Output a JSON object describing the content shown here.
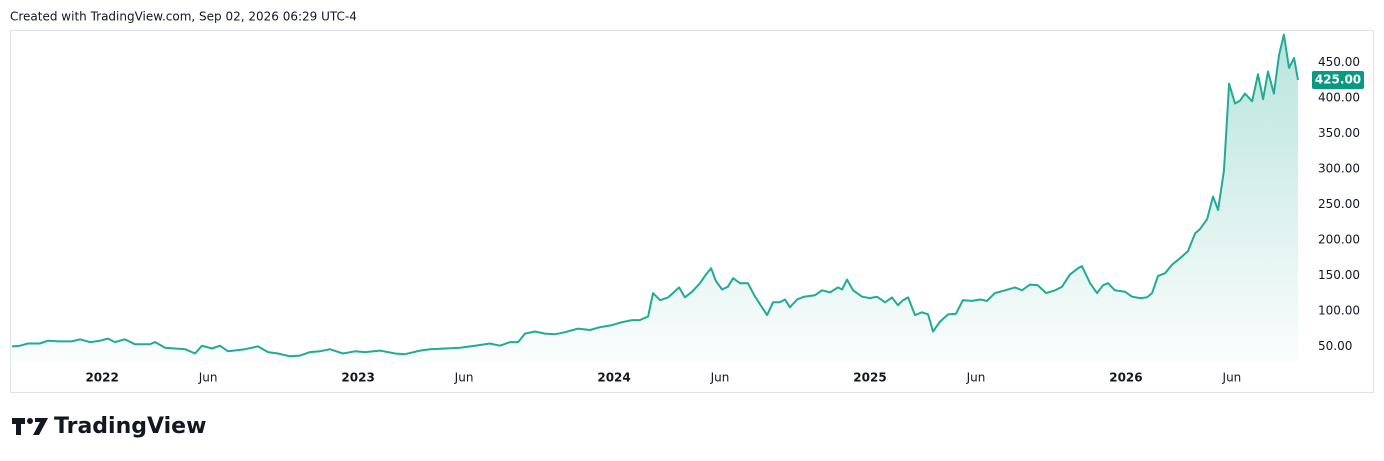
{
  "header_text": "Created with TradingView.com, Sep 02, 2026 06:29 UTC-4",
  "brand": "TradingView",
  "chart_data": {
    "type": "area",
    "color": "#22ab94",
    "x": [
      2021.648,
      2021.679,
      2021.71,
      2021.757,
      2021.788,
      2021.835,
      2021.882,
      2021.913,
      2021.953,
      2021.992,
      2022.023,
      2022.05,
      2022.089,
      2022.128,
      2022.187,
      2022.207,
      2022.246,
      2022.324,
      2022.363,
      2022.39,
      2022.429,
      2022.46,
      2022.492,
      2022.558,
      2022.609,
      2022.648,
      2022.687,
      2022.734,
      2022.773,
      2022.812,
      2022.851,
      2022.89,
      2022.941,
      2022.988,
      2023.027,
      2023.086,
      2023.144,
      2023.183,
      2023.242,
      2023.281,
      2023.34,
      2023.398,
      2023.457,
      2023.515,
      2023.554,
      2023.594,
      2023.625,
      2023.652,
      2023.691,
      2023.73,
      2023.769,
      2023.808,
      2023.859,
      2023.906,
      2023.945,
      2023.992,
      2024.031,
      2024.07,
      2024.101,
      2024.133,
      2024.152,
      2024.18,
      2024.211,
      2024.23,
      2024.254,
      2024.277,
      2024.305,
      2024.336,
      2024.359,
      2024.379,
      2024.398,
      2024.422,
      2024.445,
      2024.465,
      2024.492,
      2024.523,
      2024.551,
      2024.578,
      2024.598,
      2024.621,
      2024.648,
      2024.668,
      2024.687,
      2024.715,
      2024.742,
      2024.785,
      2024.813,
      2024.844,
      2024.875,
      2024.891,
      2024.91,
      2024.934,
      2024.969,
      2025.0,
      2025.027,
      2025.059,
      2025.086,
      2025.109,
      2025.129,
      2025.149,
      2025.176,
      2025.203,
      2025.227,
      2025.246,
      2025.274,
      2025.305,
      2025.336,
      2025.363,
      2025.399,
      2025.43,
      2025.457,
      2025.488,
      2025.528,
      2025.567,
      2025.594,
      2025.625,
      2025.656,
      2025.688,
      2025.723,
      2025.75,
      2025.781,
      2025.813,
      2025.828,
      2025.86,
      2025.887,
      2025.91,
      2025.93,
      2025.957,
      2025.996,
      2026.024,
      2026.055,
      2026.082,
      2026.102,
      2026.125,
      2026.153,
      2026.18,
      2026.211,
      2026.242,
      2026.27,
      2026.289,
      2026.317,
      2026.34,
      2026.36,
      2026.383,
      2026.403,
      2026.426,
      2026.446,
      2026.465,
      2026.493,
      2026.516,
      2026.536,
      2026.555,
      2026.578,
      2026.598,
      2026.617,
      2026.637,
      2026.657,
      2026.672
    ],
    "values": [
      50,
      51,
      54,
      54,
      58,
      57,
      57,
      60,
      56,
      58,
      61,
      56,
      60,
      53,
      53,
      56,
      48,
      46,
      40,
      51,
      47,
      51,
      43,
      46,
      50,
      42,
      40,
      36,
      37,
      42,
      43,
      46,
      40,
      43,
      42,
      44,
      40,
      39,
      44,
      46,
      47,
      48,
      51,
      54,
      51,
      56,
      56,
      68,
      71,
      68,
      67,
      70,
      75,
      73,
      77,
      80,
      84,
      87,
      87,
      92,
      125,
      115,
      119,
      125,
      133,
      119,
      127,
      139,
      151,
      160,
      142,
      130,
      134,
      146,
      139,
      139,
      120,
      105,
      94,
      112,
      112,
      116,
      105,
      116,
      120,
      122,
      129,
      126,
      133,
      130,
      144,
      129,
      120,
      118,
      120,
      112,
      119,
      108,
      115,
      119,
      94,
      98,
      95,
      71,
      85,
      95,
      96,
      115,
      114,
      116,
      114,
      125,
      129,
      133,
      129,
      137,
      136,
      125,
      129,
      134,
      151,
      160,
      163,
      139,
      125,
      136,
      139,
      129,
      127,
      120,
      118,
      119,
      125,
      149,
      153,
      165,
      174,
      184,
      209,
      215,
      229,
      261,
      242,
      298,
      420,
      392,
      396,
      406,
      395,
      433,
      398,
      437,
      406,
      460,
      489,
      442,
      456,
      425
    ],
    "last_price": {
      "value": 425,
      "label": "425.00"
    },
    "xlim": [
      2021.64,
      2026.68
    ],
    "ylim": [
      28,
      494
    ],
    "xticks": [
      2022,
      {
        "value": 2022.414,
        "label": "Jun"
      },
      2023,
      {
        "value": 2023.414,
        "label": "Jun"
      },
      2024,
      {
        "value": 2024.414,
        "label": "Jun"
      },
      2025,
      {
        "value": 2025.414,
        "label": "Jun"
      },
      2026,
      {
        "value": 2026.414,
        "label": "Jun"
      }
    ],
    "yticks": [
      {
        "value": 50,
        "label": "50.00"
      },
      {
        "value": 100,
        "label": "100.00"
      },
      {
        "value": 150,
        "label": "150.00"
      },
      {
        "value": 200,
        "label": "200.00"
      },
      {
        "value": 250,
        "label": "250.00"
      },
      {
        "value": 300,
        "label": "300.00"
      },
      {
        "value": 350,
        "label": "350.00"
      },
      {
        "value": 400,
        "label": "400.00"
      },
      {
        "value": 450,
        "label": "450.00"
      }
    ]
  }
}
